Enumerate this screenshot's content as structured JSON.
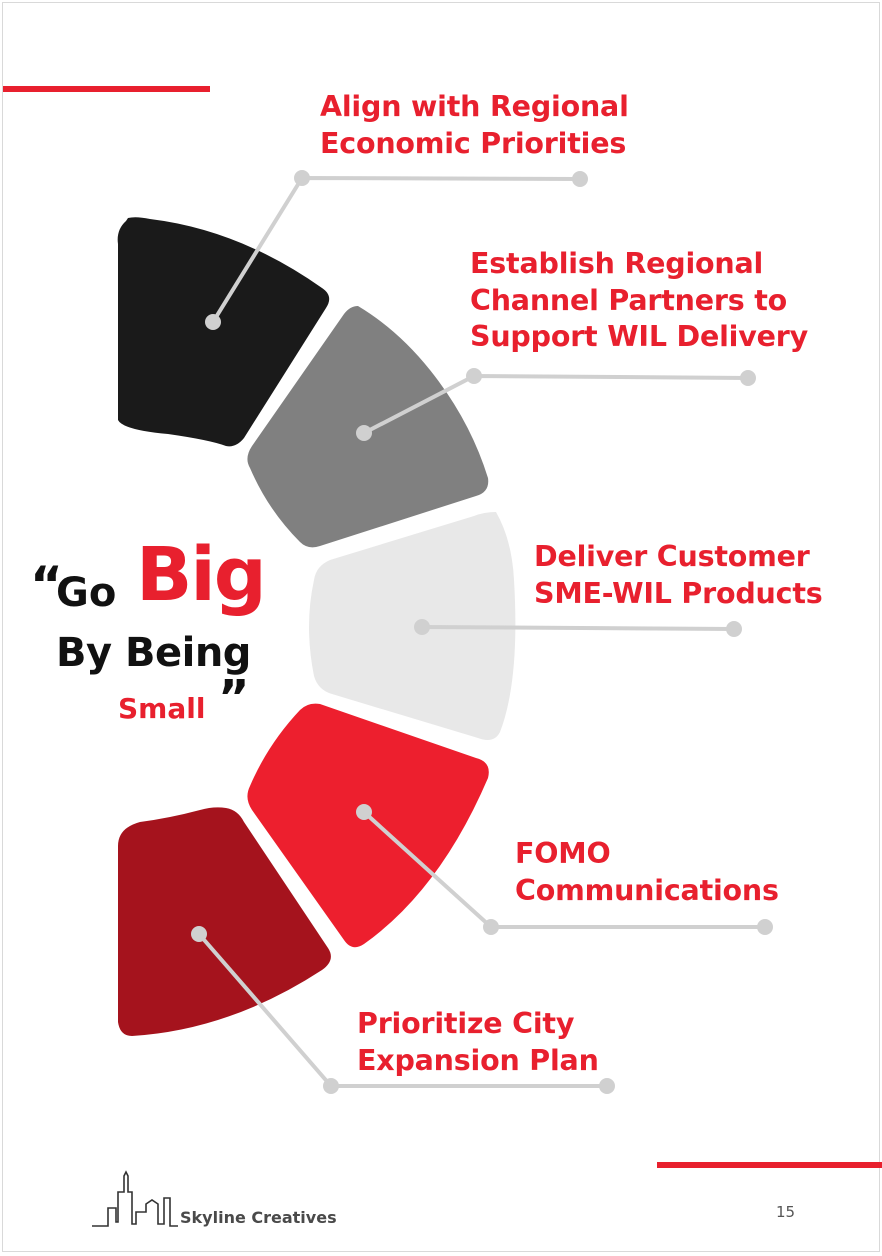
{
  "quote": {
    "open_mark": "“",
    "word_go": "Go",
    "word_big": "Big",
    "line_by_being": "By Being",
    "word_small": "Small",
    "close_mark": "”"
  },
  "items": [
    {
      "label_line1": "Align with Regional",
      "label_line2": "Economic Priorities",
      "color": "#1a1a1a"
    },
    {
      "label_line1": "Establish Regional",
      "label_line2": "Channel Partners to",
      "label_line3": "Support WIL Delivery",
      "color": "#808080"
    },
    {
      "label_line1": "Deliver Customer",
      "label_line2": "SME-WIL Products",
      "color": "#e8e8e8"
    },
    {
      "label_line1": "FOMO",
      "label_line2": "Communications",
      "color": "#ed1f2e"
    },
    {
      "label_line1": "Prioritize City",
      "label_line2": "Expansion Plan",
      "color": "#a5131d"
    }
  ],
  "colors": {
    "accent": "#e8202e",
    "connector": "#d0d0d0",
    "text_dark": "#111111"
  },
  "footer": {
    "brand": "Skyline Creatives",
    "page_number": "15"
  }
}
